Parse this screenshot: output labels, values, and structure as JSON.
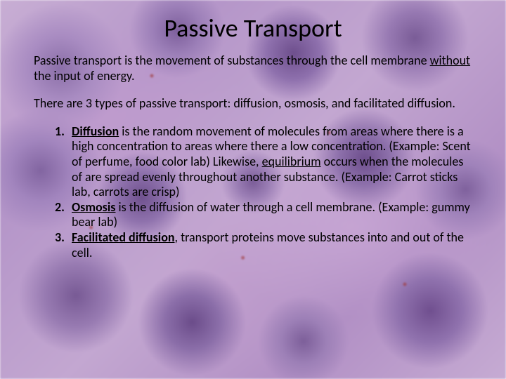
{
  "background": {
    "base_gradient": [
      "#c8aed4",
      "#b596c9",
      "#c3a7d1",
      "#b290c5",
      "#c6abd3"
    ],
    "nucleus_color": "#6e4f8d",
    "cytoplasm_color": "#b596c9",
    "dot_accent": "#a03838"
  },
  "typography": {
    "title_fontsize": 36,
    "body_fontsize": 18,
    "font_family": "Calibri",
    "text_color": "#000000"
  },
  "title": "Passive Transport",
  "intro": {
    "pre": "Passive transport is the movement of substances through the cell membrane ",
    "underlined": "without",
    "post": " the input of energy."
  },
  "types_line": "There are 3 types of passive transport:  diffusion, osmosis, and facilitated diffusion.",
  "items": [
    {
      "term": "Diffusion",
      "body_pre": " is the random movement of molecules from areas where there is a high concentration to areas where there a low concentration. (Example: Scent of perfume, food color lab)  Likewise, ",
      "mid_underlined": "equilibrium",
      "body_post": " occurs when the molecules of are spread evenly throughout another substance. (Example: Carrot sticks lab, carrots are crisp)"
    },
    {
      "term": "Osmosis",
      "body_pre": " is the diffusion of water through a cell membrane. (Example: gummy bear lab)",
      "mid_underlined": "",
      "body_post": ""
    },
    {
      "term": "Facilitated diffusion",
      "body_pre": ", transport proteins move substances into and out of the cell.",
      "mid_underlined": "",
      "body_post": ""
    }
  ]
}
